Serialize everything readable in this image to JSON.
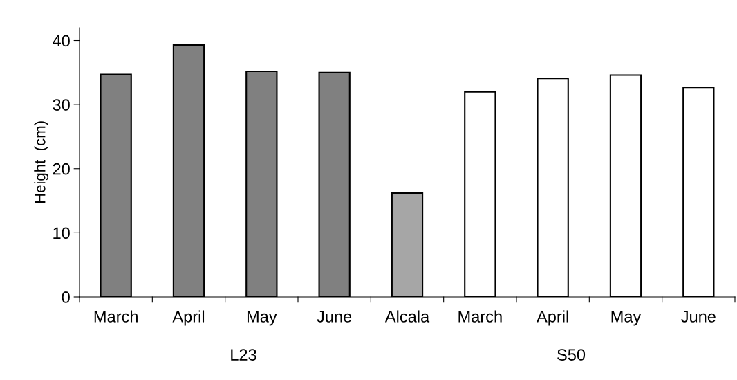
{
  "chart_data": {
    "type": "bar",
    "ylabel": "Height  (cm)",
    "categories": [
      "March",
      "April",
      "May",
      "June",
      "Alcala",
      "March",
      "April",
      "May",
      "June"
    ],
    "values": [
      34.7,
      39.3,
      35.2,
      35.0,
      16.2,
      32.0,
      34.1,
      34.6,
      32.7
    ],
    "colors": [
      "#808080",
      "#808080",
      "#808080",
      "#808080",
      "#a6a6a6",
      "#ffffff",
      "#ffffff",
      "#ffffff",
      "#ffffff"
    ],
    "ylim": [
      0,
      42
    ],
    "yticks": [
      0,
      10,
      20,
      30,
      40
    ],
    "annotations": [
      "L23",
      "S50"
    ],
    "grid": false,
    "legend": false
  }
}
